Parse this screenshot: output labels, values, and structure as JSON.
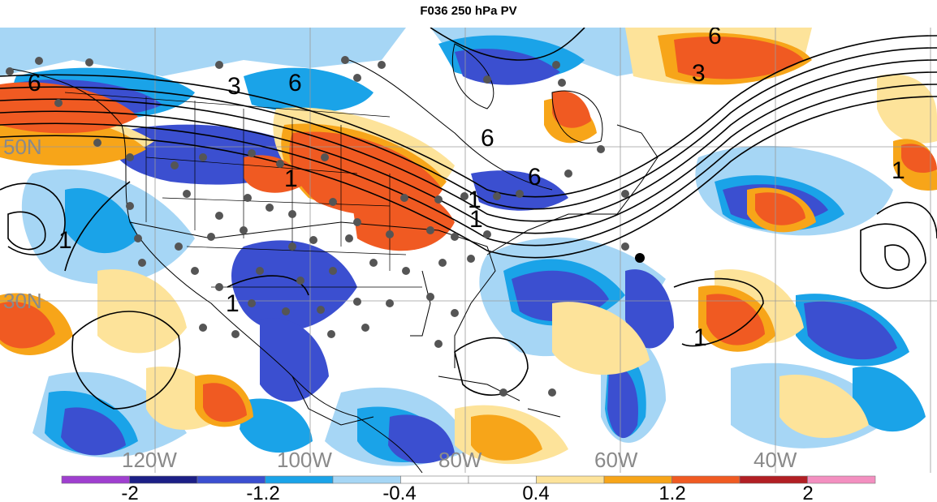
{
  "title": "F036 250 hPa PV",
  "map": {
    "latitude_labels": [
      "50N",
      "30N"
    ],
    "longitude_labels": [
      "120W",
      "100W",
      "80W",
      "60W",
      "40W"
    ],
    "contour_labels": [
      "6",
      "3",
      "6",
      "1",
      "6",
      "6",
      "1",
      "1",
      "1",
      "1",
      "6",
      "3",
      "1",
      "1"
    ]
  },
  "colorbar": {
    "colors": [
      "#9f3fcf",
      "#1c1f86",
      "#3b4fd0",
      "#1aa3e8",
      "#a6d6f5",
      "#ffffff",
      "#ffffff",
      "#fde39a",
      "#f7a519",
      "#f05a22",
      "#b21f24",
      "#f38fc0"
    ],
    "tick_labels": [
      "-2",
      "-1.2",
      "-0.4",
      "0.4",
      "1.2",
      "2"
    ]
  }
}
